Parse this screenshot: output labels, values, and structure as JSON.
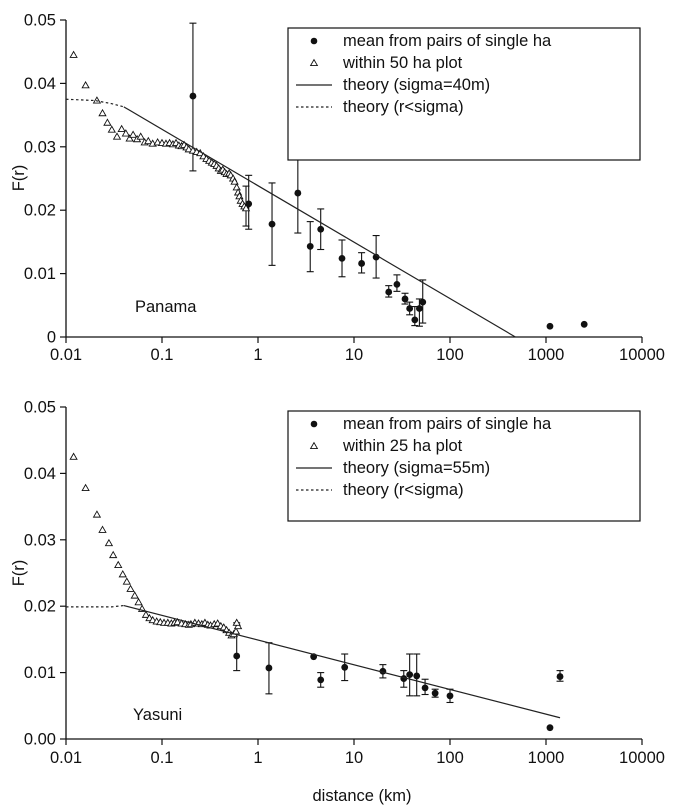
{
  "chart_data": [
    {
      "type": "scatter",
      "panel_label": "Panama",
      "ylabel": "F(r)",
      "xlabel": "",
      "x_scale": "log",
      "xlim": [
        0.01,
        10000
      ],
      "ylim": [
        0,
        0.05
      ],
      "x_ticks": [
        "0.01",
        "0.1",
        "1",
        "10",
        "100",
        "1000",
        "10000"
      ],
      "y_ticks": [
        "0",
        "0.01",
        "0.02",
        "0.03",
        "0.04",
        "0.05"
      ],
      "legend_position": "top-right",
      "grid": false,
      "series": [
        {
          "name": "mean from pairs of single ha",
          "marker": "filled-circle",
          "points": [
            {
              "x": 0.21,
              "y": 0.038,
              "lo": 0.0262,
              "hi": 0.0495
            },
            {
              "x": 0.75,
              "y": 0.0205,
              "lo": 0.0175,
              "hi": 0.0238
            },
            {
              "x": 0.8,
              "y": 0.021,
              "lo": 0.017,
              "hi": 0.0255
            },
            {
              "x": 1.4,
              "y": 0.0178,
              "lo": 0.0113,
              "hi": 0.0243
            },
            {
              "x": 2.6,
              "y": 0.0227,
              "lo": 0.0164,
              "hi": 0.029
            },
            {
              "x": 3.5,
              "y": 0.0143,
              "lo": 0.0103,
              "hi": 0.0182
            },
            {
              "x": 4.5,
              "y": 0.017,
              "lo": 0.0138,
              "hi": 0.0202
            },
            {
              "x": 7.5,
              "y": 0.0124,
              "lo": 0.0095,
              "hi": 0.0153
            },
            {
              "x": 12,
              "y": 0.0116,
              "lo": 0.0101,
              "hi": 0.0133
            },
            {
              "x": 17,
              "y": 0.0126,
              "lo": 0.0093,
              "hi": 0.016
            },
            {
              "x": 23,
              "y": 0.0071,
              "lo": 0.0063,
              "hi": 0.0081
            },
            {
              "x": 28,
              "y": 0.0083,
              "lo": 0.0072,
              "hi": 0.0098
            },
            {
              "x": 34,
              "y": 0.006,
              "lo": 0.0052,
              "hi": 0.0069
            },
            {
              "x": 38,
              "y": 0.0045,
              "lo": 0.0035,
              "hi": 0.0055
            },
            {
              "x": 43,
              "y": 0.0027,
              "lo": 0.0018,
              "hi": 0.0048
            },
            {
              "x": 48,
              "y": 0.0045,
              "lo": 0.0017,
              "hi": 0.006
            },
            {
              "x": 52,
              "y": 0.0055,
              "lo": 0.0022,
              "hi": 0.009
            },
            {
              "x": 1100,
              "y": 0.0017
            },
            {
              "x": 2500,
              "y": 0.002
            }
          ]
        },
        {
          "name": "within 50 ha plot",
          "marker": "open-triangle",
          "points": [
            [
              0.012,
              0.0445
            ],
            [
              0.016,
              0.0397
            ],
            [
              0.021,
              0.0373
            ],
            [
              0.024,
              0.0353
            ],
            [
              0.027,
              0.0338
            ],
            [
              0.03,
              0.0327
            ],
            [
              0.034,
              0.0316
            ],
            [
              0.038,
              0.0328
            ],
            [
              0.042,
              0.0321
            ],
            [
              0.046,
              0.0313
            ],
            [
              0.05,
              0.0319
            ],
            [
              0.055,
              0.0312
            ],
            [
              0.06,
              0.0316
            ],
            [
              0.066,
              0.0307
            ],
            [
              0.072,
              0.0309
            ],
            [
              0.08,
              0.0305
            ],
            [
              0.09,
              0.0307
            ],
            [
              0.1,
              0.0306
            ],
            [
              0.11,
              0.0305
            ],
            [
              0.12,
              0.0306
            ],
            [
              0.13,
              0.0304
            ],
            [
              0.14,
              0.0306
            ],
            [
              0.15,
              0.0302
            ],
            [
              0.16,
              0.0301
            ],
            [
              0.17,
              0.0303
            ],
            [
              0.18,
              0.0299
            ],
            [
              0.19,
              0.0296
            ],
            [
              0.21,
              0.0294
            ],
            [
              0.23,
              0.0292
            ],
            [
              0.25,
              0.029
            ],
            [
              0.27,
              0.0285
            ],
            [
              0.29,
              0.0281
            ],
            [
              0.31,
              0.0278
            ],
            [
              0.33,
              0.0275
            ],
            [
              0.35,
              0.0273
            ],
            [
              0.37,
              0.027
            ],
            [
              0.39,
              0.0266
            ],
            [
              0.41,
              0.0262
            ],
            [
              0.43,
              0.0264
            ],
            [
              0.45,
              0.026
            ],
            [
              0.47,
              0.0257
            ],
            [
              0.5,
              0.0258
            ],
            [
              0.52,
              0.0255
            ],
            [
              0.55,
              0.025
            ],
            [
              0.57,
              0.0245
            ],
            [
              0.6,
              0.0236
            ],
            [
              0.62,
              0.0228
            ],
            [
              0.64,
              0.0222
            ],
            [
              0.66,
              0.0215
            ],
            [
              0.69,
              0.021
            ],
            [
              0.72,
              0.0206
            ],
            [
              0.75,
              0.0203
            ]
          ]
        },
        {
          "name": "theory (sigma=40m)",
          "line_style": "solid",
          "points": [
            [
              0.04,
              0.0363
            ],
            [
              480,
              0.0
            ]
          ]
        },
        {
          "name": "theory (r<sigma)",
          "line_style": "dotted",
          "points": [
            [
              0.01,
              0.0375
            ],
            [
              0.02,
              0.0373
            ],
            [
              0.03,
              0.0368
            ],
            [
              0.04,
              0.0363
            ]
          ]
        }
      ]
    },
    {
      "type": "scatter",
      "panel_label": "Yasuni",
      "ylabel": "F(r)",
      "xlabel": "distance (km)",
      "x_scale": "log",
      "xlim": [
        0.01,
        10000
      ],
      "ylim": [
        0,
        0.05
      ],
      "x_ticks": [
        "0.01",
        "0.1",
        "1",
        "10",
        "100",
        "1000",
        "10000"
      ],
      "y_ticks": [
        "0.00",
        "0.01",
        "0.02",
        "0.03",
        "0.04",
        "0.05"
      ],
      "legend_position": "top-right",
      "grid": false,
      "series": [
        {
          "name": "mean from pairs of single ha",
          "marker": "filled-circle",
          "points": [
            {
              "x": 0.6,
              "y": 0.0125,
              "lo": 0.0103,
              "hi": 0.0175
            },
            {
              "x": 1.3,
              "y": 0.0107,
              "lo": 0.0068,
              "hi": 0.0145
            },
            {
              "x": 3.8,
              "y": 0.0124
            },
            {
              "x": 4.5,
              "y": 0.0089,
              "lo": 0.0078,
              "hi": 0.01
            },
            {
              "x": 8,
              "y": 0.0108,
              "lo": 0.0088,
              "hi": 0.0128
            },
            {
              "x": 20,
              "y": 0.0102,
              "lo": 0.0092,
              "hi": 0.0112
            },
            {
              "x": 33,
              "y": 0.0091,
              "lo": 0.0078,
              "hi": 0.0103
            },
            {
              "x": 38,
              "y": 0.0097,
              "lo": 0.0065,
              "hi": 0.0128
            },
            {
              "x": 45,
              "y": 0.0095,
              "lo": 0.0065,
              "hi": 0.0128
            },
            {
              "x": 55,
              "y": 0.0077,
              "lo": 0.0067,
              "hi": 0.009
            },
            {
              "x": 70,
              "y": 0.0069,
              "lo": 0.0063,
              "hi": 0.0075
            },
            {
              "x": 100,
              "y": 0.0065,
              "lo": 0.0055,
              "hi": 0.0075
            },
            {
              "x": 1100,
              "y": 0.0017
            },
            {
              "x": 1400,
              "y": 0.0094,
              "lo": 0.0087,
              "hi": 0.0103
            }
          ]
        },
        {
          "name": "within 25 ha plot",
          "marker": "open-triangle",
          "points": [
            [
              0.012,
              0.0425
            ],
            [
              0.016,
              0.0378
            ],
            [
              0.021,
              0.0338
            ],
            [
              0.024,
              0.0315
            ],
            [
              0.028,
              0.0295
            ],
            [
              0.031,
              0.0277
            ],
            [
              0.035,
              0.0262
            ],
            [
              0.039,
              0.0248
            ],
            [
              0.043,
              0.0237
            ],
            [
              0.047,
              0.0226
            ],
            [
              0.052,
              0.0216
            ],
            [
              0.057,
              0.0206
            ],
            [
              0.062,
              0.0196
            ],
            [
              0.068,
              0.0187
            ],
            [
              0.074,
              0.0182
            ],
            [
              0.08,
              0.0179
            ],
            [
              0.088,
              0.0177
            ],
            [
              0.096,
              0.0176
            ],
            [
              0.105,
              0.0175
            ],
            [
              0.115,
              0.0175
            ],
            [
              0.125,
              0.0174
            ],
            [
              0.135,
              0.0175
            ],
            [
              0.145,
              0.0176
            ],
            [
              0.16,
              0.0174
            ],
            [
              0.175,
              0.0173
            ],
            [
              0.19,
              0.0172
            ],
            [
              0.2,
              0.0173
            ],
            [
              0.22,
              0.0175
            ],
            [
              0.24,
              0.0174
            ],
            [
              0.26,
              0.0173
            ],
            [
              0.28,
              0.0175
            ],
            [
              0.3,
              0.0172
            ],
            [
              0.32,
              0.0171
            ],
            [
              0.35,
              0.0173
            ],
            [
              0.38,
              0.0174
            ],
            [
              0.41,
              0.017
            ],
            [
              0.44,
              0.0168
            ],
            [
              0.47,
              0.0164
            ],
            [
              0.5,
              0.016
            ],
            [
              0.53,
              0.0156
            ],
            [
              0.56,
              0.0158
            ],
            [
              0.59,
              0.0162
            ],
            [
              0.62,
              0.017
            ],
            [
              0.6,
              0.0175
            ]
          ]
        },
        {
          "name": "theory (sigma=55m)",
          "line_style": "solid",
          "points": [
            [
              0.04,
              0.0201
            ],
            [
              1400,
              0.0032
            ]
          ]
        },
        {
          "name": "theory (r<sigma)",
          "line_style": "dotted",
          "points": [
            [
              0.01,
              0.0199
            ],
            [
              0.02,
              0.0199
            ],
            [
              0.03,
              0.0199
            ],
            [
              0.04,
              0.0201
            ]
          ]
        }
      ]
    }
  ]
}
